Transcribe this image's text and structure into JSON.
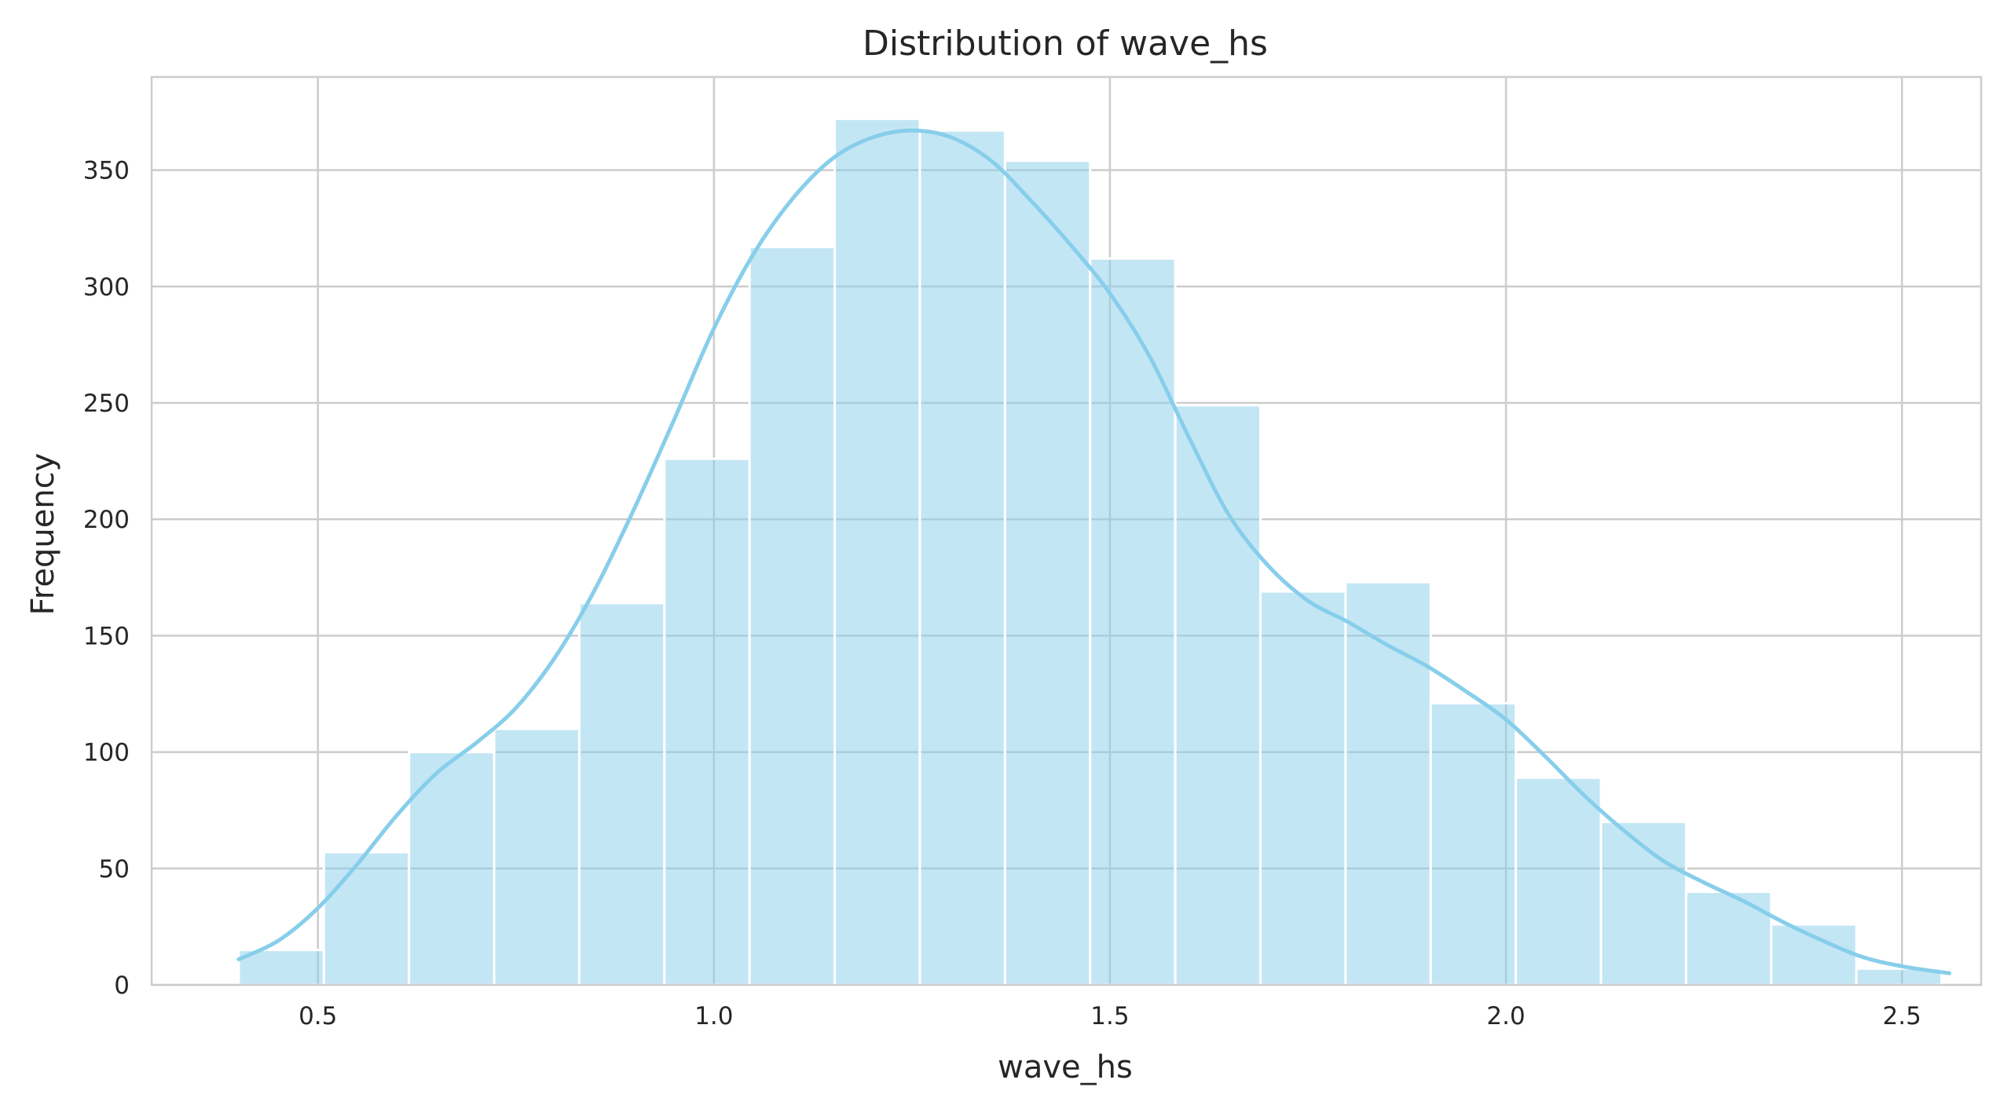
{
  "chart_data": {
    "type": "bar",
    "subtype": "histogram_with_kde",
    "title": "Distribution of wave_hs",
    "xlabel": "wave_hs",
    "ylabel": "Frequency",
    "xlim": [
      0.29,
      2.6
    ],
    "ylim": [
      0,
      390
    ],
    "x_ticks": [
      0.5,
      1.0,
      1.5,
      2.0,
      2.5
    ],
    "x_tick_labels": [
      "0.5",
      "1.0",
      "1.5",
      "2.0",
      "2.5"
    ],
    "y_ticks": [
      0,
      50,
      100,
      150,
      200,
      250,
      300,
      350
    ],
    "y_tick_labels": [
      "0",
      "50",
      "100",
      "150",
      "200",
      "250",
      "300",
      "350"
    ],
    "grid": true,
    "legend": "none",
    "colors": {
      "bar_fill": "#87ceeb",
      "bar_fill_opacity": 0.5,
      "bar_edge": "#ffffff",
      "kde_line": "#87ceeb",
      "grid": "#cccccc",
      "frame": "#cccccc",
      "text": "#262626"
    },
    "bins": {
      "start": 0.4,
      "width": 0.1075,
      "counts": [
        15,
        57,
        100,
        110,
        164,
        226,
        317,
        372,
        367,
        354,
        312,
        249,
        169,
        173,
        121,
        89,
        70,
        40,
        26,
        7
      ]
    },
    "kde": {
      "x": [
        0.4,
        0.45,
        0.5,
        0.55,
        0.6,
        0.65,
        0.7,
        0.75,
        0.8,
        0.85,
        0.9,
        0.95,
        1.0,
        1.05,
        1.1,
        1.15,
        1.2,
        1.25,
        1.3,
        1.35,
        1.4,
        1.45,
        1.5,
        1.55,
        1.6,
        1.65,
        1.7,
        1.75,
        1.8,
        1.85,
        1.9,
        1.95,
        2.0,
        2.05,
        2.1,
        2.15,
        2.2,
        2.25,
        2.3,
        2.35,
        2.4,
        2.45,
        2.5,
        2.56
      ],
      "y": [
        11,
        19,
        33,
        52,
        73,
        91,
        104,
        119,
        141,
        170,
        205,
        243,
        282,
        314,
        338,
        355,
        364,
        367,
        364,
        354,
        337,
        318,
        297,
        270,
        235,
        202,
        180,
        165,
        156,
        146,
        137,
        126,
        114,
        98,
        81,
        66,
        53,
        44,
        36,
        27,
        19,
        12,
        8,
        5
      ]
    }
  }
}
